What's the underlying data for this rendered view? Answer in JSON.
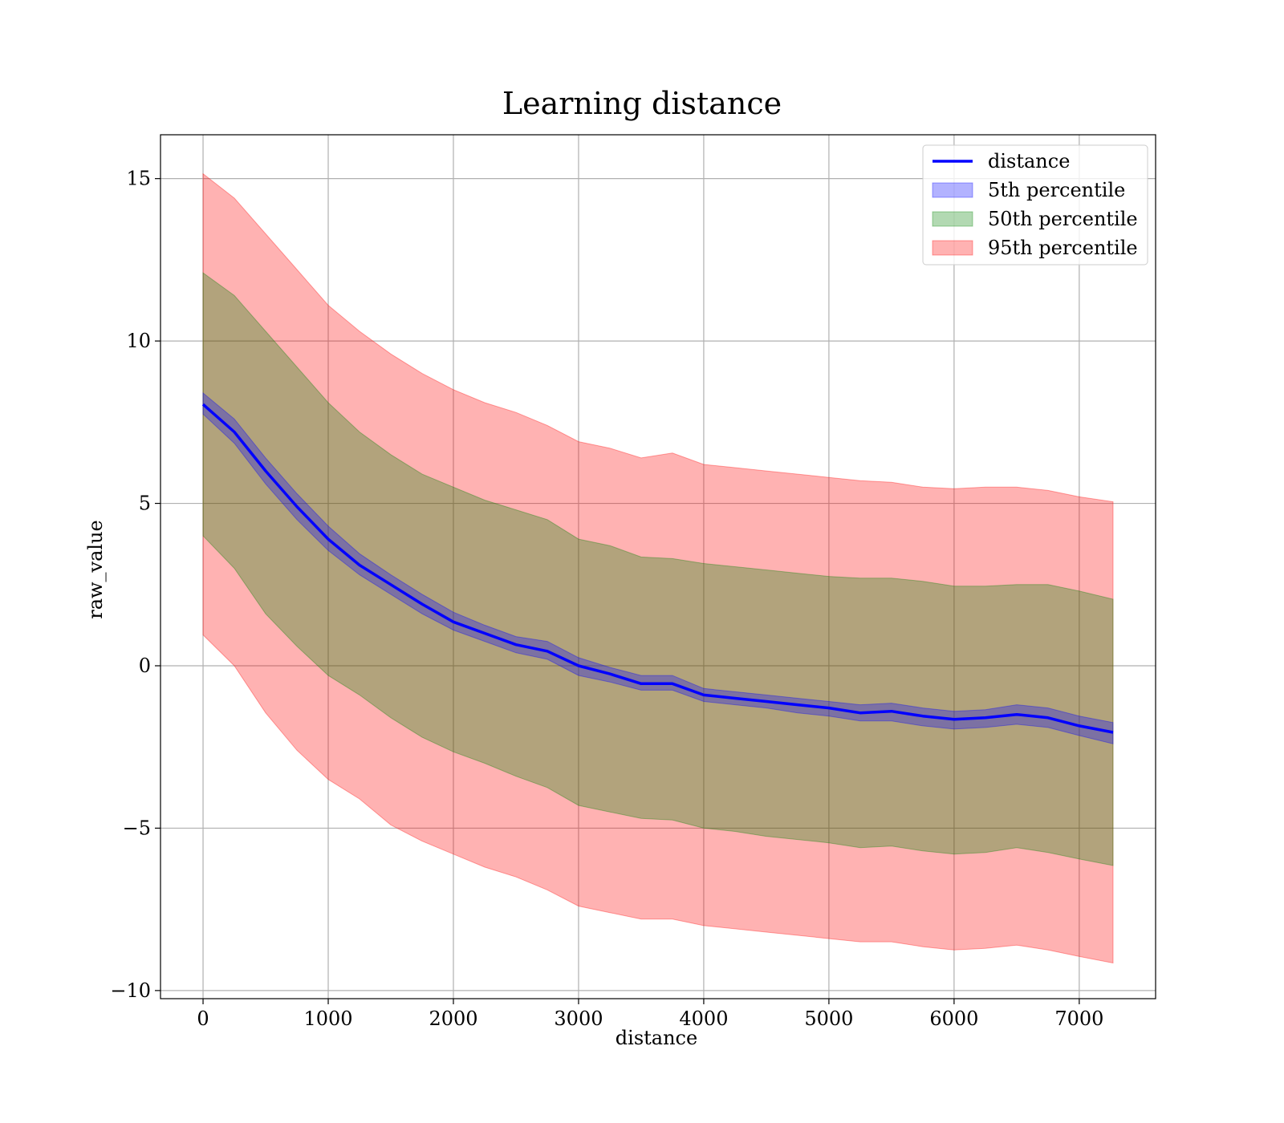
{
  "chart_data": {
    "type": "line",
    "title": "Learning distance",
    "xlabel": "distance",
    "ylabel": "raw_value",
    "xlim": [
      -340,
      7610
    ],
    "ylim": [
      -10.25,
      16.35
    ],
    "x_ticks": [
      0,
      1000,
      2000,
      3000,
      4000,
      5000,
      6000,
      7000
    ],
    "x_tick_labels": [
      "0",
      "1000",
      "2000",
      "3000",
      "4000",
      "5000",
      "6000",
      "7000"
    ],
    "y_ticks": [
      -10,
      -5,
      0,
      5,
      10,
      15
    ],
    "y_tick_labels": [
      "−10",
      "−5",
      "0",
      "5",
      "10",
      "15"
    ],
    "grid": true,
    "legend_position": "top-right",
    "colors": {
      "line": "#0000ff",
      "band_5th": "#0000ff",
      "band_50th": "#008000",
      "band_95th": "#ff0000"
    },
    "legend": [
      {
        "label": "distance",
        "kind": "line",
        "color": "#0000ff"
      },
      {
        "label": "5th percentile",
        "kind": "band",
        "color": "#0000ff"
      },
      {
        "label": "50th percentile",
        "kind": "band",
        "color": "#008000"
      },
      {
        "label": "95th percentile",
        "kind": "band",
        "color": "#ff0000"
      }
    ],
    "x": [
      0,
      250,
      500,
      750,
      1000,
      1250,
      1500,
      1750,
      2000,
      2250,
      2500,
      2750,
      3000,
      3250,
      3500,
      3750,
      4000,
      4250,
      4500,
      4750,
      5000,
      5250,
      5500,
      5750,
      6000,
      6250,
      6500,
      6750,
      7000,
      7270
    ],
    "series": [
      {
        "name": "distance",
        "values": [
          8.05,
          7.2,
          6.0,
          4.9,
          3.9,
          3.1,
          2.5,
          1.9,
          1.35,
          1.0,
          0.65,
          0.45,
          0.0,
          -0.25,
          -0.55,
          -0.55,
          -0.9,
          -1.0,
          -1.1,
          -1.2,
          -1.3,
          -1.45,
          -1.4,
          -1.55,
          -1.65,
          -1.6,
          -1.5,
          -1.6,
          -1.85,
          -2.05
        ]
      }
    ],
    "bands": [
      {
        "name": "5th percentile",
        "lower": [
          7.75,
          6.85,
          5.6,
          4.5,
          3.55,
          2.8,
          2.2,
          1.6,
          1.1,
          0.75,
          0.4,
          0.2,
          -0.3,
          -0.5,
          -0.75,
          -0.75,
          -1.1,
          -1.2,
          -1.3,
          -1.45,
          -1.55,
          -1.7,
          -1.7,
          -1.85,
          -1.95,
          -1.9,
          -1.8,
          -1.9,
          -2.15,
          -2.4
        ],
        "upper": [
          8.4,
          7.6,
          6.4,
          5.3,
          4.3,
          3.45,
          2.8,
          2.2,
          1.65,
          1.25,
          0.9,
          0.75,
          0.25,
          -0.05,
          -0.3,
          -0.3,
          -0.7,
          -0.8,
          -0.9,
          -1.0,
          -1.1,
          -1.2,
          -1.15,
          -1.3,
          -1.4,
          -1.35,
          -1.2,
          -1.3,
          -1.55,
          -1.75
        ]
      },
      {
        "name": "50th percentile",
        "lower": [
          4.0,
          3.0,
          1.6,
          0.6,
          -0.3,
          -0.9,
          -1.6,
          -2.2,
          -2.65,
          -3.0,
          -3.4,
          -3.75,
          -4.3,
          -4.5,
          -4.7,
          -4.75,
          -5.0,
          -5.1,
          -5.25,
          -5.35,
          -5.45,
          -5.6,
          -5.55,
          -5.7,
          -5.8,
          -5.75,
          -5.6,
          -5.75,
          -5.95,
          -6.15
        ],
        "upper": [
          12.1,
          11.4,
          10.3,
          9.2,
          8.1,
          7.2,
          6.5,
          5.9,
          5.5,
          5.1,
          4.8,
          4.5,
          3.9,
          3.7,
          3.35,
          3.3,
          3.15,
          3.05,
          2.95,
          2.85,
          2.75,
          2.7,
          2.7,
          2.6,
          2.45,
          2.45,
          2.5,
          2.5,
          2.3,
          2.05
        ]
      },
      {
        "name": "95th percentile",
        "lower": [
          0.95,
          0.0,
          -1.45,
          -2.6,
          -3.5,
          -4.1,
          -4.9,
          -5.4,
          -5.8,
          -6.2,
          -6.5,
          -6.9,
          -7.4,
          -7.6,
          -7.8,
          -7.8,
          -8.0,
          -8.1,
          -8.2,
          -8.3,
          -8.4,
          -8.5,
          -8.5,
          -8.65,
          -8.75,
          -8.7,
          -8.6,
          -8.75,
          -8.95,
          -9.15
        ],
        "upper": [
          15.15,
          14.4,
          13.3,
          12.2,
          11.1,
          10.3,
          9.6,
          9.0,
          8.5,
          8.1,
          7.8,
          7.4,
          6.9,
          6.7,
          6.4,
          6.55,
          6.2,
          6.1,
          6.0,
          5.9,
          5.8,
          5.7,
          5.65,
          5.5,
          5.45,
          5.5,
          5.5,
          5.4,
          5.2,
          5.05
        ]
      }
    ]
  }
}
